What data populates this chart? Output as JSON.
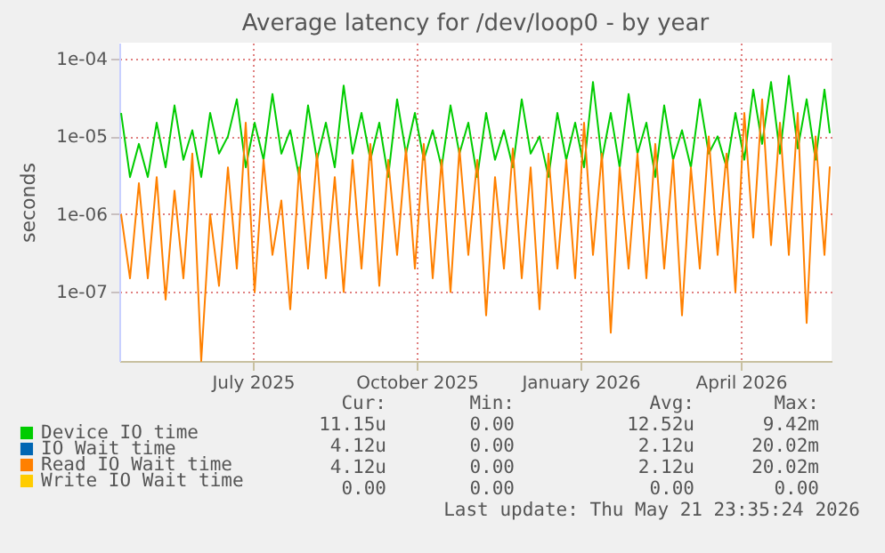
{
  "chart_data": {
    "type": "line",
    "title": "Average latency for /dev/loop0 - by year",
    "ylabel": "seconds",
    "x": [
      "2025-04-18",
      "2025-04-23",
      "2025-04-28",
      "2025-05-03",
      "2025-05-08",
      "2025-05-13",
      "2025-05-18",
      "2025-05-23",
      "2025-05-28",
      "2025-06-02",
      "2025-06-07",
      "2025-06-12",
      "2025-06-17",
      "2025-06-22",
      "2025-06-27",
      "2025-07-02",
      "2025-07-07",
      "2025-07-12",
      "2025-07-17",
      "2025-07-22",
      "2025-07-27",
      "2025-08-01",
      "2025-08-06",
      "2025-08-11",
      "2025-08-16",
      "2025-08-21",
      "2025-08-26",
      "2025-08-31",
      "2025-09-05",
      "2025-09-10",
      "2025-09-15",
      "2025-09-20",
      "2025-09-25",
      "2025-09-30",
      "2025-10-05",
      "2025-10-10",
      "2025-10-15",
      "2025-10-20",
      "2025-10-25",
      "2025-10-30",
      "2025-11-04",
      "2025-11-09",
      "2025-11-14",
      "2025-11-19",
      "2025-11-24",
      "2025-11-29",
      "2025-12-04",
      "2025-12-09",
      "2025-12-14",
      "2025-12-19",
      "2025-12-24",
      "2025-12-29",
      "2026-01-03",
      "2026-01-08",
      "2026-01-13",
      "2026-01-18",
      "2026-01-23",
      "2026-01-28",
      "2026-02-02",
      "2026-02-07",
      "2026-02-12",
      "2026-02-17",
      "2026-02-22",
      "2026-02-27",
      "2026-03-04",
      "2026-03-09",
      "2026-03-14",
      "2026-03-19",
      "2026-03-24",
      "2026-03-29",
      "2026-04-03",
      "2026-04-08",
      "2026-04-13",
      "2026-04-18",
      "2026-04-23",
      "2026-04-28",
      "2026-05-03",
      "2026-05-08",
      "2026-05-13",
      "2026-05-18",
      "2026-05-21"
    ],
    "series": [
      {
        "name": "Device IO time",
        "color": "#00cc00",
        "values": [
          2e-05,
          3e-06,
          8e-06,
          3e-06,
          1.5e-05,
          4e-06,
          2.5e-05,
          5e-06,
          1.2e-05,
          3e-06,
          2e-05,
          6e-06,
          1e-05,
          3e-05,
          4e-06,
          1.5e-05,
          5e-06,
          3.5e-05,
          6e-06,
          1.2e-05,
          3e-06,
          2.5e-05,
          5e-06,
          1.5e-05,
          4e-06,
          4.5e-05,
          6e-06,
          2e-05,
          5e-06,
          1.5e-05,
          3e-06,
          3e-05,
          6e-06,
          2e-05,
          5e-06,
          1.2e-05,
          4e-06,
          2.5e-05,
          6e-06,
          1.5e-05,
          3e-06,
          2e-05,
          5e-06,
          1.2e-05,
          4e-06,
          3e-05,
          6e-06,
          1e-05,
          3e-06,
          2e-05,
          5e-06,
          1.5e-05,
          4e-06,
          5e-05,
          5e-06,
          2e-05,
          4e-06,
          3.5e-05,
          6e-06,
          1.5e-05,
          3e-06,
          2.5e-05,
          5e-06,
          1.2e-05,
          4e-06,
          3e-05,
          6e-06,
          1e-05,
          4e-06,
          2e-05,
          5e-06,
          4e-05,
          8e-06,
          5e-05,
          6e-06,
          6e-05,
          7e-06,
          3e-05,
          5e-06,
          4e-05,
          1.1e-05
        ]
      },
      {
        "name": "IO Wait time",
        "color": "#0066b3",
        "values": [
          null,
          null,
          null,
          null,
          null,
          null,
          null,
          null,
          null,
          null,
          null,
          null,
          null,
          null,
          null,
          null,
          null,
          null,
          null,
          null,
          null,
          null,
          null,
          null,
          null,
          null,
          null,
          null,
          null,
          null,
          null,
          null,
          null,
          null,
          null,
          null,
          null,
          null,
          null,
          null,
          null,
          null,
          null,
          null,
          null,
          null,
          null,
          null,
          null,
          null,
          null,
          null,
          null,
          null,
          null,
          null,
          null,
          null,
          null,
          null,
          null,
          null,
          null,
          null,
          null,
          null,
          null,
          null,
          null,
          null,
          null,
          null,
          null,
          null,
          null,
          null,
          null,
          null,
          null,
          null,
          null
        ]
      },
      {
        "name": "Read IO Wait time",
        "color": "#ff8000",
        "values": [
          1e-06,
          1.5e-07,
          2.5e-06,
          1.5e-07,
          3e-06,
          8e-08,
          2e-06,
          1.5e-07,
          6e-06,
          1.3e-08,
          1e-06,
          1.2e-07,
          4e-06,
          2e-07,
          1.5e-05,
          1e-07,
          5e-06,
          3e-07,
          1.5e-06,
          6e-08,
          4e-06,
          2e-07,
          6e-06,
          1.5e-07,
          3e-06,
          1e-07,
          5e-06,
          2e-07,
          8e-06,
          1.2e-07,
          5e-06,
          3e-07,
          7e-06,
          2e-07,
          8e-06,
          1.5e-07,
          5e-06,
          1e-07,
          7e-06,
          3e-07,
          5e-06,
          5e-08,
          3e-06,
          2e-07,
          7e-06,
          1.5e-07,
          4e-06,
          6e-08,
          6e-06,
          2e-07,
          5e-06,
          1.5e-07,
          1.5e-05,
          3e-07,
          6e-06,
          3e-08,
          4e-06,
          2e-07,
          6e-06,
          1.5e-07,
          8e-06,
          2e-07,
          5e-06,
          5e-08,
          4e-06,
          2e-07,
          1e-05,
          3e-07,
          6e-06,
          1e-07,
          2e-05,
          5e-07,
          3e-05,
          4e-07,
          1.5e-05,
          3e-07,
          2e-05,
          4e-08,
          1e-05,
          3e-07,
          4.1e-06
        ]
      },
      {
        "name": "Write IO Wait time",
        "color": "#ffcc00",
        "values": [
          null,
          null,
          null,
          null,
          null,
          null,
          null,
          null,
          null,
          null,
          null,
          null,
          null,
          null,
          null,
          null,
          null,
          null,
          null,
          null,
          null,
          null,
          null,
          null,
          null,
          null,
          null,
          null,
          null,
          null,
          null,
          null,
          null,
          null,
          null,
          null,
          null,
          null,
          null,
          null,
          null,
          null,
          null,
          null,
          null,
          null,
          null,
          null,
          null,
          null,
          null,
          null,
          null,
          null,
          null,
          null,
          null,
          null,
          null,
          null,
          null,
          null,
          null,
          null,
          null,
          null,
          null,
          null,
          null,
          null,
          null,
          null,
          null,
          null,
          null,
          null,
          null,
          null,
          null,
          null,
          null
        ]
      }
    ],
    "log": true,
    "ylim": [
      1.3e-08,
      0.00016
    ],
    "yticks": [
      {
        "value": 1e-07,
        "label": "1e-07"
      },
      {
        "value": 1e-06,
        "label": "1e-06"
      },
      {
        "value": 1e-05,
        "label": "1e-05"
      },
      {
        "value": 0.0001,
        "label": "1e-04"
      }
    ],
    "xlim": [
      "2025-04-17",
      "2026-05-22"
    ],
    "xticks": [
      {
        "value": "2025-07-01",
        "label": "July 2025"
      },
      {
        "value": "2025-10-01",
        "label": "October 2025"
      },
      {
        "value": "2026-01-01",
        "label": "January 2026"
      },
      {
        "value": "2026-04-01",
        "label": "April 2026"
      }
    ],
    "grid": true,
    "legend": "bottom left",
    "marker": "none",
    "line_style": "solid",
    "annotations": [
      "Cur:",
      "Min:",
      "Avg:",
      "Max:",
      "11.15u",
      "0.00",
      "12.52u",
      "9.42m",
      "4.12u",
      "0.00",
      "2.12u",
      "20.02m",
      "4.12u",
      "0.00",
      "2.12u",
      "20.02m",
      "0.00",
      "0.00",
      "0.00",
      "0.00",
      "Last update: Thu May 21 23:35:24 2026"
    ]
  }
}
